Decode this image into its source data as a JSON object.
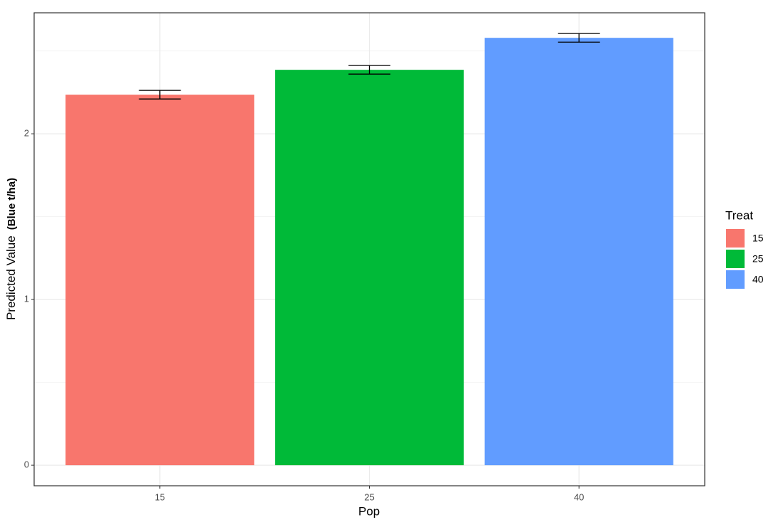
{
  "chart_data": {
    "type": "bar",
    "xlabel": "Pop",
    "ylabel": {
      "text": "Predicted Value",
      "bold": "(Blue t/ha)"
    },
    "categories": [
      "15",
      "25",
      "40"
    ],
    "values": [
      2.236,
      2.386,
      2.579
    ],
    "errors": [
      0.026,
      0.026,
      0.026
    ],
    "colors": [
      "#f8766d",
      "#00ba38",
      "#619cff"
    ],
    "ylim": [
      -0.124,
      2.73
    ],
    "yticks": [
      0,
      1,
      2
    ],
    "minor_yticks": [
      0.5,
      1.5,
      2.5
    ],
    "grid": true,
    "legend_title": "Treat",
    "legend_position": "right"
  }
}
